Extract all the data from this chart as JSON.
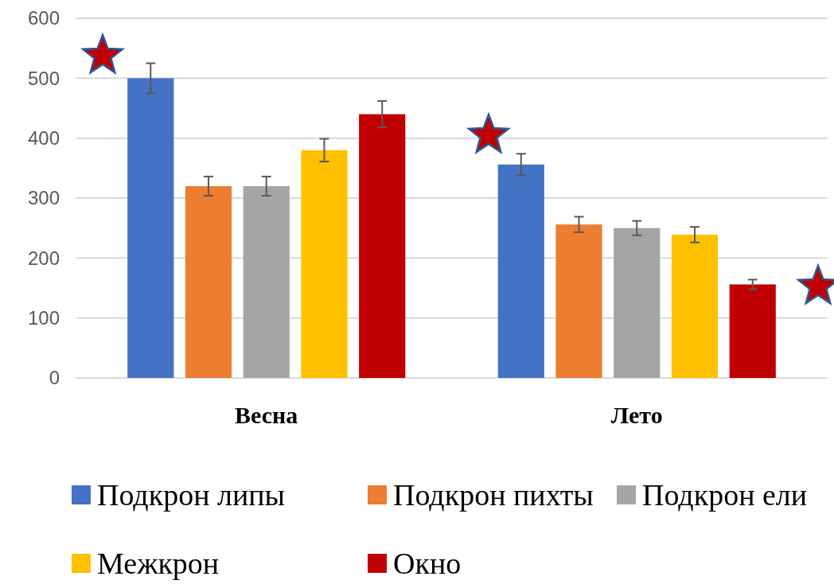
{
  "chart_data": {
    "type": "bar",
    "categories": [
      "Весна",
      "Лето"
    ],
    "series": [
      {
        "name": "Подкрон липы",
        "color": "#4472c4",
        "values": [
          500,
          356
        ],
        "errors": [
          25,
          18
        ]
      },
      {
        "name": "Подкрон пихты",
        "color": "#ed7d31",
        "values": [
          320,
          256
        ],
        "errors": [
          16,
          13
        ]
      },
      {
        "name": "Подкрон ели",
        "color": "#a5a5a5",
        "values": [
          320,
          250
        ],
        "errors": [
          16,
          12
        ]
      },
      {
        "name": "Межкрон",
        "color": "#ffc000",
        "values": [
          380,
          239
        ],
        "errors": [
          19,
          13
        ]
      },
      {
        "name": "Окно",
        "color": "#c00000",
        "values": [
          440,
          156
        ],
        "errors": [
          22,
          8
        ]
      }
    ],
    "ylim": [
      0,
      600
    ],
    "yticks": [
      0,
      100,
      200,
      300,
      400,
      500,
      600
    ],
    "grid": "y",
    "legend": "bottom"
  }
}
